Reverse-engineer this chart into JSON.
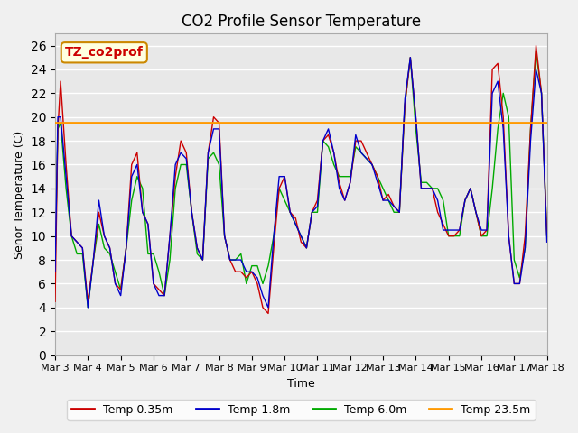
{
  "title": "CO2 Profile Sensor Temperature",
  "ylabel": "Senor Temperature (C)",
  "xlabel": "Time",
  "annotation": "TZ_co2prof",
  "ylim": [
    0,
    27
  ],
  "yticks": [
    0,
    2,
    4,
    6,
    8,
    10,
    12,
    14,
    16,
    18,
    20,
    22,
    24,
    26
  ],
  "orange_line_y": 19.5,
  "colors": {
    "red": "#cc0000",
    "blue": "#0000cc",
    "green": "#00aa00",
    "orange": "#ff9900"
  },
  "legend": [
    "Temp 0.35m",
    "Temp 1.8m",
    "Temp 6.0m",
    "Temp 23.5m"
  ],
  "bg_color": "#e8e8e8",
  "plot_bg": "#e8e8e8",
  "x_start": 0,
  "x_end": 360,
  "num_points": 361,
  "xtick_positions": [
    0,
    24,
    48,
    72,
    96,
    120,
    144,
    168,
    192,
    216,
    240,
    264,
    288,
    312,
    336,
    360
  ],
  "xtick_labels": [
    "Mar 3",
    "Mar 4",
    "Mar 5",
    "Mar 6",
    "Mar 7",
    "Mar 8",
    "Mar 9",
    "Mar 10",
    "Mar 11",
    "Mar 12",
    "Mar 13",
    "Mar 14",
    "Mar 15",
    "Mar 16",
    "Mar 17",
    "Mar 18"
  ]
}
